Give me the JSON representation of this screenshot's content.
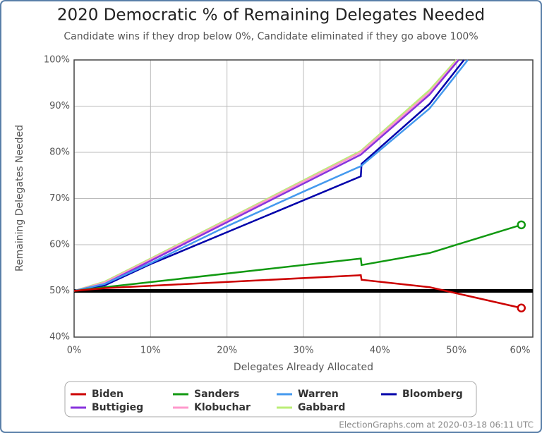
{
  "chart_data": {
    "type": "line",
    "title": "2020 Democratic % of Remaining Delegates Needed",
    "subtitle": "Candidate wins if they drop below 0%, Candidate eliminated if they go above 100%",
    "x_label": "Delegates Already Allocated",
    "y_label": "Remaining Delegates Needed",
    "footer": "ElectionGraphs.com at 2020-03-18 06:11 UTC",
    "xlim": [
      0,
      60
    ],
    "ylim": [
      40,
      100
    ],
    "xticks": [
      {
        "value": 0,
        "label": "0%"
      },
      {
        "value": 10,
        "label": "10%"
      },
      {
        "value": 20,
        "label": "20%"
      },
      {
        "value": 30,
        "label": "30%"
      },
      {
        "value": 40,
        "label": "40%"
      },
      {
        "value": 50,
        "label": "50%"
      },
      {
        "value": 60,
        "label": "60%"
      }
    ],
    "yticks": [
      {
        "value": 40,
        "label": "40%"
      },
      {
        "value": 50,
        "label": "50%"
      },
      {
        "value": 60,
        "label": "60%"
      },
      {
        "value": 70,
        "label": "70%"
      },
      {
        "value": 80,
        "label": "80%"
      },
      {
        "value": 90,
        "label": "90%"
      },
      {
        "value": 100,
        "label": "100%"
      }
    ],
    "grid": true,
    "hline": 50,
    "legend": "bottom",
    "series": [
      {
        "name": "Biden",
        "color": "#cc0000",
        "end_marker": true,
        "x": [
          0,
          4,
          37.5,
          37.6,
          46.5,
          58.5
        ],
        "values": [
          50,
          50.6,
          53.4,
          52.4,
          50.8,
          46.3
        ]
      },
      {
        "name": "Sanders",
        "color": "#119911",
        "end_marker": true,
        "x": [
          0,
          4,
          37.5,
          37.6,
          46.5,
          58.5
        ],
        "values": [
          50,
          50.8,
          57,
          55.6,
          58.2,
          64.3
        ]
      },
      {
        "name": "Warren",
        "color": "#4499ee",
        "end_marker": false,
        "x": [
          0,
          4,
          10,
          20,
          30,
          37.5,
          46.5,
          51.5
        ],
        "values": [
          50,
          51.5,
          56,
          64,
          71.5,
          77,
          89.5,
          100
        ]
      },
      {
        "name": "Bloomberg",
        "color": "#0000aa",
        "end_marker": false,
        "x": [
          0,
          4,
          10,
          37.5,
          37.6,
          46.5,
          51
        ],
        "values": [
          50,
          51.2,
          55.8,
          74.8,
          77.5,
          90.5,
          100
        ]
      },
      {
        "name": "Buttigieg",
        "color": "#8833dd",
        "end_marker": false,
        "x": [
          0,
          4,
          10,
          37.5,
          46.5,
          50.3
        ],
        "values": [
          50,
          51.5,
          56.5,
          79.5,
          92.5,
          100
        ]
      },
      {
        "name": "Klobuchar",
        "color": "#ff99cc",
        "end_marker": false,
        "x": [
          0,
          4,
          10,
          37.5,
          46.5,
          50.2
        ],
        "values": [
          50,
          51.8,
          56.8,
          80,
          93,
          100
        ]
      },
      {
        "name": "Gabbard",
        "color": "#bbee77",
        "end_marker": false,
        "x": [
          0,
          4,
          10,
          37.5,
          46.5,
          50
        ],
        "values": [
          50,
          52,
          57,
          80.3,
          93.5,
          100
        ]
      }
    ]
  }
}
